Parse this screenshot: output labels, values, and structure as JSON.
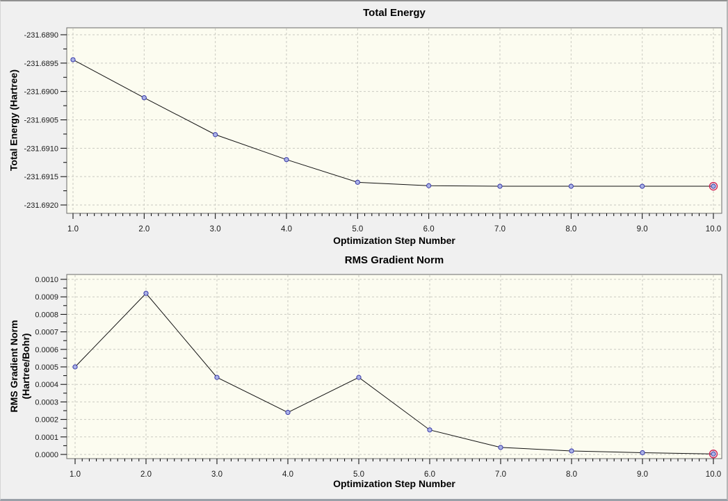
{
  "window": {
    "background": "#f0f0f0",
    "border_color": "#909090"
  },
  "style": {
    "plot_bg": "#fcfcf0",
    "plot_border": "#6a6a6a",
    "grid_color": "#c9c9c1",
    "line_color": "#111111",
    "marker_fill": "#aab2e6",
    "marker_stroke": "#3a3aa8",
    "highlight_ring": "#cc2255",
    "tick_color": "#000000",
    "tick_label_color": "#1a1a1a"
  },
  "chart_data": [
    {
      "type": "line",
      "title": "Total Energy",
      "xlabel": "Optimization Step Number",
      "ylabel": "Total Energy (Hartree)",
      "x": [
        1,
        2,
        3,
        4,
        5,
        6,
        7,
        8,
        9,
        10
      ],
      "values": [
        -231.68944,
        -231.69011,
        -231.69076,
        -231.6912,
        -231.6916,
        -231.69166,
        -231.69167,
        -231.69167,
        -231.69167,
        -231.69167
      ],
      "xlim": [
        1.0,
        10.0
      ],
      "ylim": [
        -231.692,
        -231.689
      ],
      "xtick_labels": [
        "1.0",
        "2.0",
        "3.0",
        "4.0",
        "5.0",
        "6.0",
        "7.0",
        "8.0",
        "9.0",
        "10.0"
      ],
      "ytick_labels": [
        "-231.6890",
        "-231.6895",
        "-231.6900",
        "-231.6905",
        "-231.6910",
        "-231.6915",
        "-231.6920"
      ],
      "grid": true,
      "legend": "none",
      "highlight_last_point": true
    },
    {
      "type": "line",
      "title": "RMS Gradient Norm",
      "xlabel": "Optimization Step Number",
      "ylabel": "RMS Gradient Norm\n(Hartree/Bohr)",
      "x": [
        1,
        2,
        3,
        4,
        5,
        6,
        7,
        8,
        9,
        10
      ],
      "values": [
        0.0005,
        0.00092,
        0.00044,
        0.00024,
        0.00044,
        0.00014,
        4e-05,
        2e-05,
        1e-05,
        3e-06
      ],
      "xlim": [
        1.0,
        10.0
      ],
      "ylim": [
        0.0,
        0.001
      ],
      "xtick_labels": [
        "1.0",
        "2.0",
        "3.0",
        "4.0",
        "5.0",
        "6.0",
        "7.0",
        "8.0",
        "9.0",
        "10.0"
      ],
      "ytick_labels": [
        "0.0010",
        "0.0009",
        "0.0008",
        "0.0007",
        "0.0006",
        "0.0005",
        "0.0004",
        "0.0003",
        "0.0002",
        "0.0001",
        "0.0000"
      ],
      "grid": true,
      "legend": "none",
      "highlight_last_point": true
    }
  ]
}
